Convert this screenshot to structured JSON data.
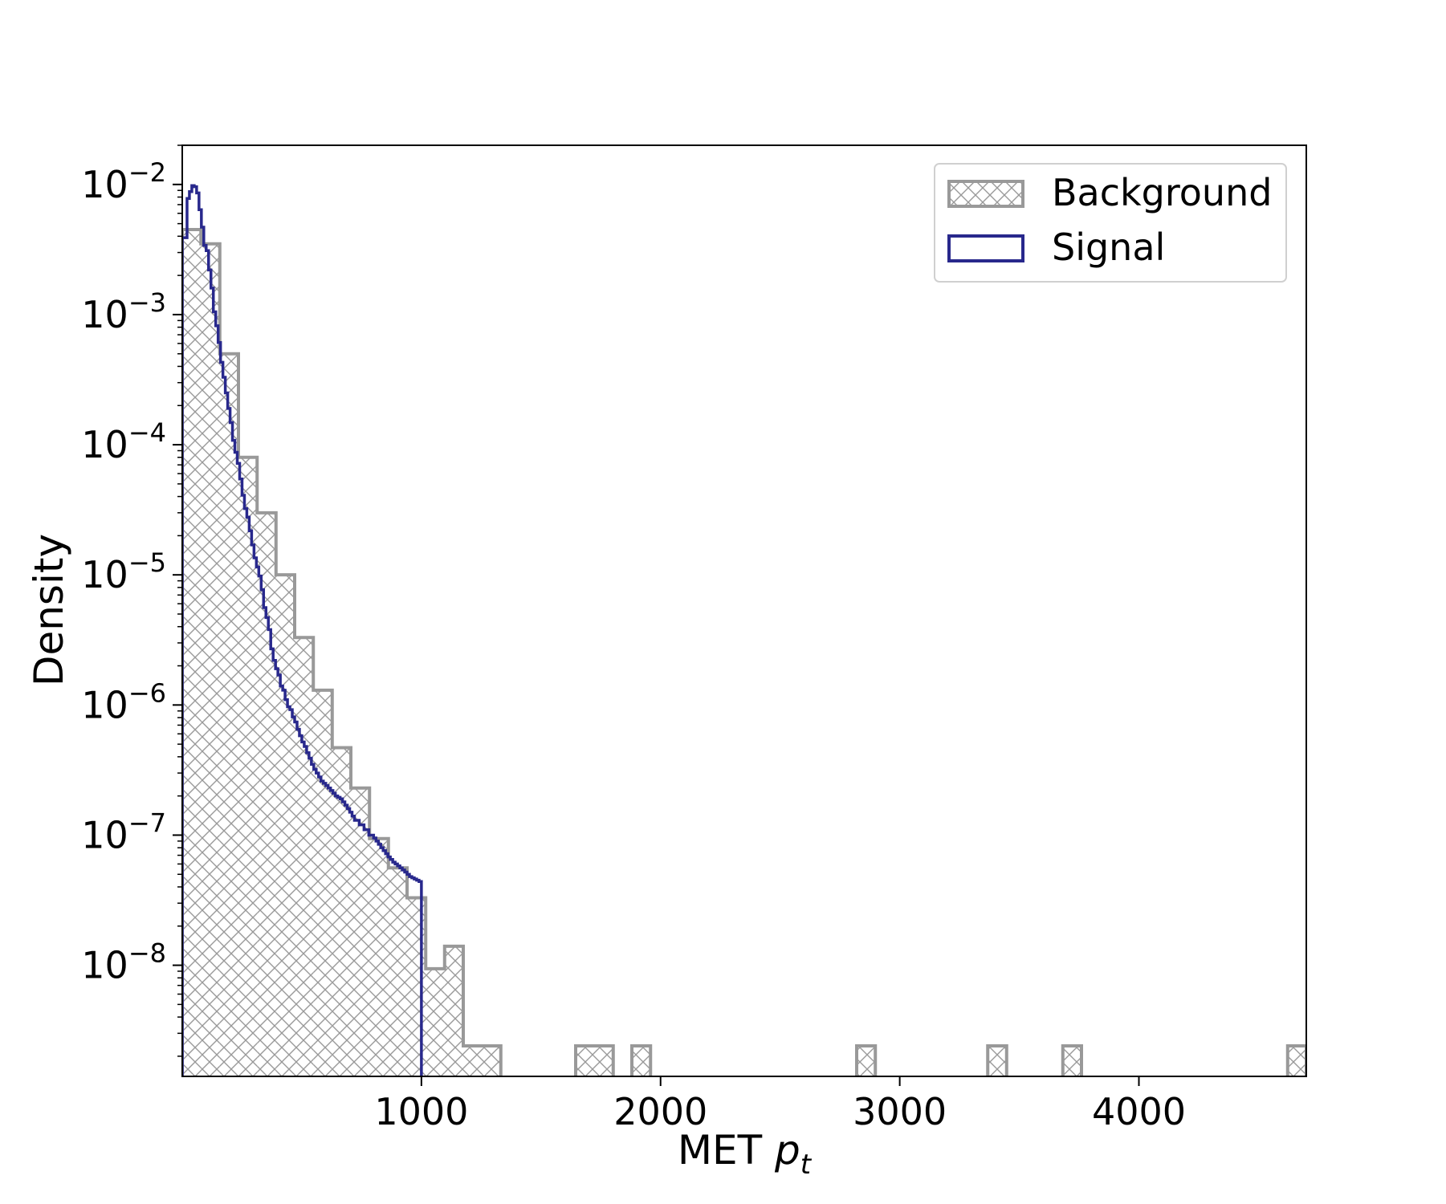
{
  "chart_data": {
    "type": "histogram",
    "xlabel": "MET",
    "xlabel_math": "p",
    "xlabel_sub": "t",
    "ylabel": "Density",
    "yscale": "log",
    "xlim": [
      0,
      4700
    ],
    "ylim": [
      1.4e-09,
      0.02
    ],
    "xticks": [
      1000,
      2000,
      3000,
      4000
    ],
    "xtick_labels": [
      "1000",
      "2000",
      "3000",
      "4000"
    ],
    "yticks": [
      0.01,
      0.001,
      0.0001,
      1e-05,
      1e-06,
      1e-07,
      1e-08
    ],
    "ytick_labels": [
      {
        "base": "10",
        "exp": "−2"
      },
      {
        "base": "10",
        "exp": "−3"
      },
      {
        "base": "10",
        "exp": "−4"
      },
      {
        "base": "10",
        "exp": "−5"
      },
      {
        "base": "10",
        "exp": "−6"
      },
      {
        "base": "10",
        "exp": "−7"
      },
      {
        "base": "10",
        "exp": "−8"
      }
    ],
    "legend": {
      "position": "top-right",
      "entries": [
        "Background",
        "Signal"
      ]
    },
    "grid": false,
    "series": [
      {
        "name": "Background",
        "style": "hatched-step",
        "color": "#999999",
        "bins": [
          {
            "x0": 0,
            "x1": 78,
            "y": 0.0045
          },
          {
            "x0": 78,
            "x1": 157,
            "y": 0.0035
          },
          {
            "x0": 157,
            "x1": 235,
            "y": 0.0005
          },
          {
            "x0": 235,
            "x1": 313,
            "y": 8e-05
          },
          {
            "x0": 313,
            "x1": 392,
            "y": 3e-05
          },
          {
            "x0": 392,
            "x1": 470,
            "y": 1e-05
          },
          {
            "x0": 470,
            "x1": 548,
            "y": 3.3e-06
          },
          {
            "x0": 548,
            "x1": 627,
            "y": 1.3e-06
          },
          {
            "x0": 627,
            "x1": 705,
            "y": 4.7e-07
          },
          {
            "x0": 705,
            "x1": 783,
            "y": 2.3e-07
          },
          {
            "x0": 783,
            "x1": 862,
            "y": 9.4e-08
          },
          {
            "x0": 862,
            "x1": 940,
            "y": 5.6e-08
          },
          {
            "x0": 940,
            "x1": 1018,
            "y": 3.3e-08
          },
          {
            "x0": 1018,
            "x1": 1097,
            "y": 9.4e-09
          },
          {
            "x0": 1097,
            "x1": 1175,
            "y": 1.4e-08
          },
          {
            "x0": 1175,
            "x1": 1332,
            "y": 2.4e-09
          },
          {
            "x0": 1645,
            "x1": 1802,
            "y": 2.4e-09
          },
          {
            "x0": 1880,
            "x1": 1958,
            "y": 2.4e-09
          },
          {
            "x0": 2820,
            "x1": 2898,
            "y": 2.4e-09
          },
          {
            "x0": 3368,
            "x1": 3447,
            "y": 2.4e-09
          },
          {
            "x0": 3682,
            "x1": 3760,
            "y": 2.4e-09
          },
          {
            "x0": 4622,
            "x1": 4700,
            "y": 2.4e-09
          }
        ]
      },
      {
        "name": "Signal",
        "style": "step",
        "color": "#28288c",
        "edges": [
          0,
          20,
          30,
          40,
          50,
          60,
          70,
          80,
          90,
          100,
          110,
          120,
          130,
          140,
          150,
          160,
          170,
          180,
          190,
          200,
          210,
          220,
          230,
          240,
          250,
          260,
          270,
          280,
          290,
          300,
          310,
          320,
          330,
          340,
          350,
          360,
          370,
          380,
          390,
          400,
          410,
          420,
          430,
          440,
          450,
          460,
          470,
          480,
          490,
          500,
          510,
          520,
          530,
          540,
          550,
          560,
          570,
          580,
          590,
          600,
          610,
          620,
          630,
          640,
          650,
          660,
          670,
          680,
          690,
          700,
          710,
          720,
          730,
          740,
          750,
          760,
          770,
          780,
          790,
          800,
          810,
          820,
          830,
          840,
          850,
          860,
          870,
          880,
          890,
          900,
          910,
          920,
          930,
          940,
          950,
          960,
          970,
          980,
          990,
          1000
        ],
        "values": [
          0.0039,
          0.0078,
          0.0088,
          0.0098,
          0.0096,
          0.0086,
          0.0064,
          0.0047,
          0.0034,
          0.0031,
          0.0022,
          0.0016,
          0.00105,
          0.00082,
          0.00061,
          0.00043,
          0.00033,
          0.00025,
          0.00019,
          0.000148,
          0.000108,
          8.75e-05,
          7.19e-05,
          5.45e-05,
          4.09e-05,
          3.23e-05,
          2.78e-05,
          2.18e-05,
          1.7e-05,
          1.35e-05,
          1.15e-05,
          9.8e-06,
          7.7e-06,
          5.6e-06,
          4.7e-06,
          3.8e-06,
          2.7e-06,
          2.2e-06,
          1.9e-06,
          1.7e-06,
          1.4e-06,
          1.3e-06,
          1.1e-06,
          9.7e-07,
          9.2e-07,
          8.1e-07,
          7.4e-07,
          6.5e-07,
          5.8e-07,
          5.2e-07,
          4.8e-07,
          4.3e-07,
          3.9e-07,
          3.5e-07,
          3.2e-07,
          3e-07,
          2.8e-07,
          2.6e-07,
          2.5e-07,
          2.4e-07,
          2.3e-07,
          2.2e-07,
          2.1e-07,
          2e-07,
          1.95e-07,
          1.9e-07,
          1.8e-07,
          1.7e-07,
          1.6e-07,
          1.5e-07,
          1.4e-07,
          1.3e-07,
          1.3e-07,
          1.2e-07,
          1.2e-07,
          1.1e-07,
          1.1e-07,
          1e-07,
          1e-07,
          9.5e-08,
          9e-08,
          8.5e-08,
          8e-08,
          7.6e-08,
          7.2e-08,
          6.8e-08,
          6.5e-08,
          6.2e-08,
          6e-08,
          5.8e-08,
          5.6e-08,
          5.4e-08,
          5.2e-08,
          5e-08,
          4.8e-08,
          4.7e-08,
          4.6e-08,
          4.5e-08,
          4.4e-08
        ]
      }
    ]
  }
}
